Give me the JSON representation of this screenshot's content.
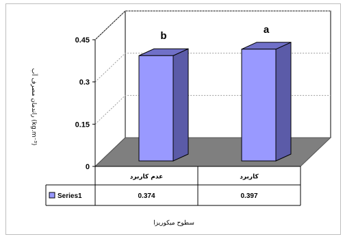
{
  "chart_data": {
    "type": "bar",
    "categories": [
      "عدم کاربرد",
      "کاربرد"
    ],
    "series": [
      {
        "name": "Series1",
        "values": [
          0.374,
          0.397
        ]
      }
    ],
    "data_labels": [
      "b",
      "a"
    ],
    "xlabel": "سطوح میکوریزا",
    "ylabel": "راندمان مصرف آب (kg.m⁻³)",
    "ylim": [
      0,
      0.45
    ],
    "yticks": [
      "0",
      "0.15",
      "0.3",
      "0.45"
    ],
    "table_values": [
      "0.374",
      "0.397"
    ],
    "grid": true,
    "style": "3d",
    "colors": {
      "bar_front": "#9999ff",
      "bar_side": "#5b5ba8",
      "bar_top": "#7070c8",
      "floor": "#7f7f7f"
    }
  }
}
